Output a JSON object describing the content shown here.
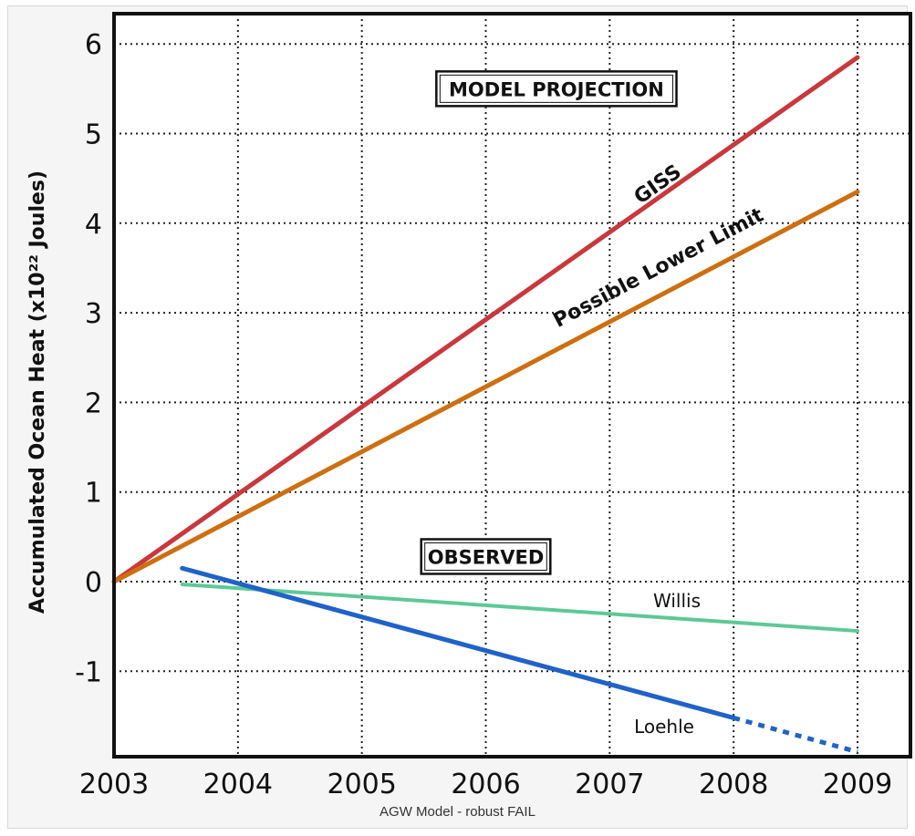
{
  "caption": "AGW Model - robust FAIL",
  "chart_data": {
    "type": "line",
    "ylabel": "Accumulated Ocean Heat (x10²² Joules)",
    "xlim": [
      2003,
      2009
    ],
    "ylim": [
      -1.9,
      6.3
    ],
    "x_ticks": [
      2003,
      2004,
      2005,
      2006,
      2007,
      2008,
      2009
    ],
    "y_ticks": [
      -1,
      0,
      1,
      2,
      3,
      4,
      5,
      6
    ],
    "grid": true,
    "annotations": [
      {
        "text": "MODEL PROJECTION",
        "x": 2006.57,
        "y": 5.5
      },
      {
        "text": "OBSERVED",
        "x": 2006.0,
        "y": 0.28
      }
    ],
    "series": [
      {
        "name": "GISS",
        "color": "#c8383c",
        "style": "solid",
        "x": [
          2003,
          2009
        ],
        "y": [
          0.0,
          5.85
        ]
      },
      {
        "name": "Possible Lower Limit",
        "color": "#cd6f10",
        "style": "solid",
        "x": [
          2003,
          2009
        ],
        "y": [
          0.0,
          4.35
        ]
      },
      {
        "name": "Willis",
        "color": "#5dc896",
        "style": "solid",
        "x": [
          2003.55,
          2009
        ],
        "y": [
          -0.03,
          -0.55
        ]
      },
      {
        "name": "Loehle",
        "color": "#1f62c8",
        "style": "solid",
        "x": [
          2003.55,
          2008
        ],
        "y": [
          0.15,
          -1.52
        ]
      },
      {
        "name": "Loehle",
        "color": "#1f62c8",
        "style": "dotted",
        "show_label": false,
        "x": [
          2008,
          2009
        ],
        "y": [
          -1.52,
          -1.9
        ]
      }
    ]
  }
}
